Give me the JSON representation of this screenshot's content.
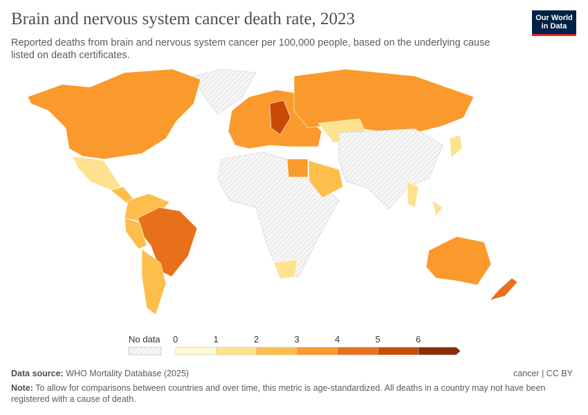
{
  "header": {
    "title": "Brain and nervous system cancer death rate, 2023",
    "subtitle": "Reported deaths from brain and nervous system cancer per 100,000 people, based on the underlying cause listed on death certificates.",
    "logo_text": "Our World in Data"
  },
  "legend": {
    "no_data_label": "No data",
    "ticks": [
      "0",
      "1",
      "2",
      "3",
      "4",
      "5",
      "6"
    ],
    "bins": [
      {
        "range": [
          0,
          1
        ],
        "color": "#fffbd0"
      },
      {
        "range": [
          1,
          2
        ],
        "color": "#fee290"
      },
      {
        "range": [
          2,
          3
        ],
        "color": "#fdbe4c"
      },
      {
        "range": [
          3,
          4
        ],
        "color": "#fa9a2c"
      },
      {
        "range": [
          4,
          5
        ],
        "color": "#e8701a"
      },
      {
        "range": [
          5,
          6
        ],
        "color": "#c94a06"
      },
      {
        "range": [
          6,
          null
        ],
        "color": "#8c2d04"
      }
    ],
    "no_data_color": "#e6e6e6"
  },
  "footer": {
    "source_label": "Data source:",
    "source": "WHO Mortality Database (2025)",
    "license": "cancer | CC BY",
    "note_label": "Note:",
    "note": "To allow for comparisons between countries and over time, this metric is age-standardized. All deaths in a country may not have been registered with a cause of death."
  }
}
